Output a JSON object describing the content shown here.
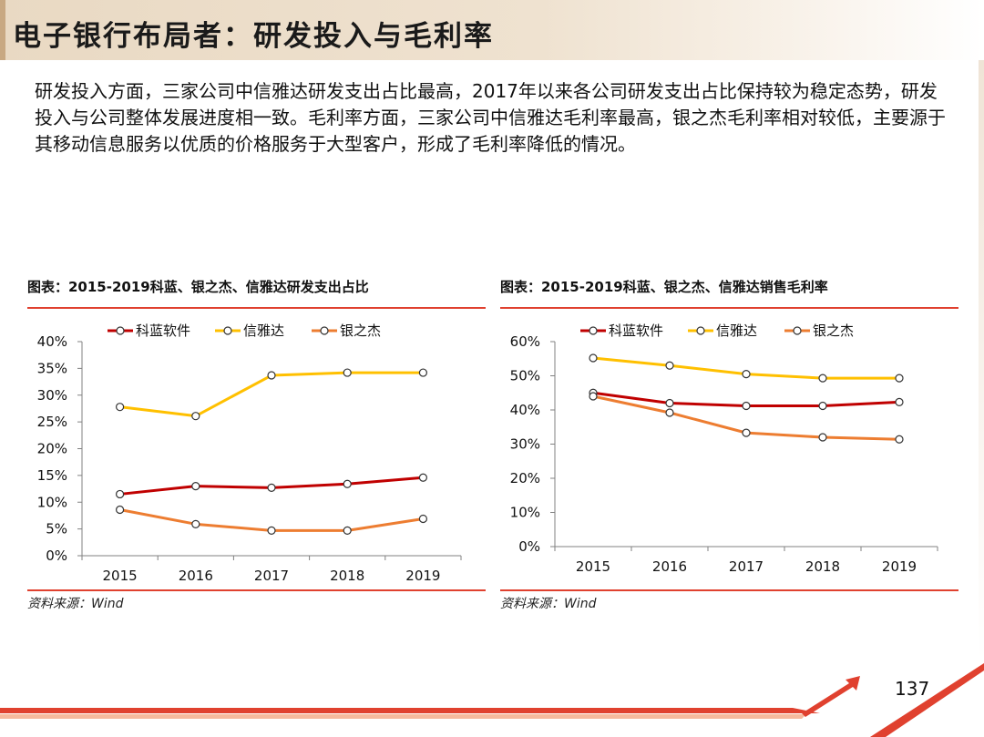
{
  "slide": {
    "title": "电子银行布局者：研发投入与毛利率",
    "paragraph": "研发投入方面，三家公司中信雅达研发支出占比最高，2017年以来各公司研发支出占比保持较为稳定态势，研发投入与公司整体发展进度相一致。毛利率方面，三家公司中信雅达毛利率最高，银之杰毛利率相对较低，主要源于其移动信息服务以优质的价格服务于大型客户，形成了毛利率降低的情况。",
    "page_number": "137"
  },
  "colors": {
    "kelan": "#c00000",
    "xinyada": "#ffc000",
    "yinzhijie": "#ed7d31",
    "rule": "#e0412f"
  },
  "chart_data": [
    {
      "type": "line",
      "figure_title": "图表：2015-2019科蓝、银之杰、信雅达研发支出占比",
      "source": "资料来源：Wind",
      "categories": [
        "2015",
        "2016",
        "2017",
        "2018",
        "2019"
      ],
      "ylim": [
        0,
        40
      ],
      "yticks": [
        0,
        5,
        10,
        15,
        20,
        25,
        30,
        35,
        40
      ],
      "ytick_labels": [
        "0%",
        "5%",
        "10%",
        "15%",
        "20%",
        "25%",
        "30%",
        "35%",
        "40%"
      ],
      "legend_position": "top",
      "series": [
        {
          "name": "科蓝软件",
          "color": "#c00000",
          "values": [
            11.5,
            13.0,
            12.7,
            13.4,
            14.6
          ]
        },
        {
          "name": "信雅达",
          "color": "#ffc000",
          "values": [
            27.8,
            26.1,
            33.7,
            34.2,
            34.2
          ]
        },
        {
          "name": "银之杰",
          "color": "#ed7d31",
          "values": [
            8.6,
            5.9,
            4.7,
            4.7,
            6.9
          ]
        }
      ]
    },
    {
      "type": "line",
      "figure_title": "图表：2015-2019科蓝、银之杰、信雅达销售毛利率",
      "source": "资料来源：Wind",
      "categories": [
        "2015",
        "2016",
        "2017",
        "2018",
        "2019"
      ],
      "ylim": [
        0,
        60
      ],
      "yticks": [
        0,
        10,
        20,
        30,
        40,
        50,
        60
      ],
      "ytick_labels": [
        "0%",
        "10%",
        "20%",
        "30%",
        "40%",
        "50%",
        "60%"
      ],
      "legend_position": "top",
      "series": [
        {
          "name": "科蓝软件",
          "color": "#c00000",
          "values": [
            45.0,
            42.0,
            41.2,
            41.2,
            42.3
          ]
        },
        {
          "name": "信雅达",
          "color": "#ffc000",
          "values": [
            55.2,
            53.0,
            50.5,
            49.3,
            49.3
          ]
        },
        {
          "name": "银之杰",
          "color": "#ed7d31",
          "values": [
            44.0,
            39.2,
            33.3,
            32.0,
            31.4
          ]
        }
      ]
    }
  ]
}
